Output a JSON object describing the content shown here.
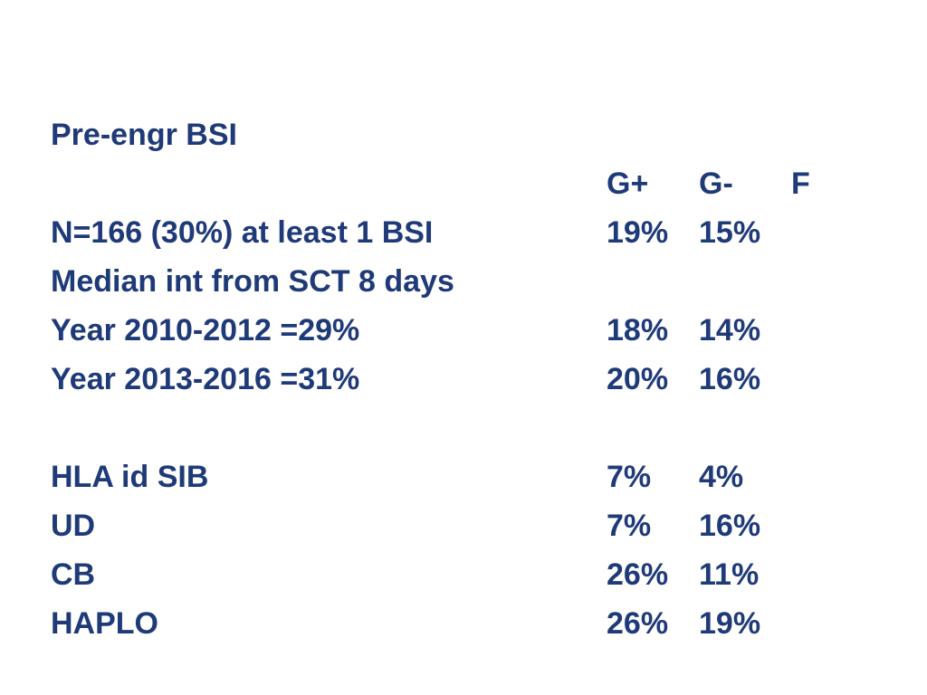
{
  "heading": "Pre-engr BSI",
  "columns": {
    "g_plus": "G+",
    "g_minus": "G-",
    "f": "F"
  },
  "rows": [
    {
      "label": "N=166 (30%) at least 1 BSI",
      "g_plus": "19%",
      "g_minus": "15%"
    },
    {
      "label": "Median int from SCT  8 days",
      "g_plus": "",
      "g_minus": ""
    },
    {
      "label": "Year 2010-2012  =29%",
      "g_plus": "18%",
      "g_minus": "14%"
    },
    {
      "label": "Year  2013-2016  =31%",
      "g_plus": "20%",
      "g_minus": "16%"
    },
    {
      "label": "HLA id SIB",
      "g_plus": "7%",
      "g_minus": "4%"
    },
    {
      "label": "UD",
      "g_plus": "7%",
      "g_minus": "16%"
    },
    {
      "label": "CB",
      "g_plus": "26%",
      "g_minus": "11%"
    },
    {
      "label": "HAPLO",
      "g_plus": "26%",
      "g_minus": "19%"
    }
  ]
}
